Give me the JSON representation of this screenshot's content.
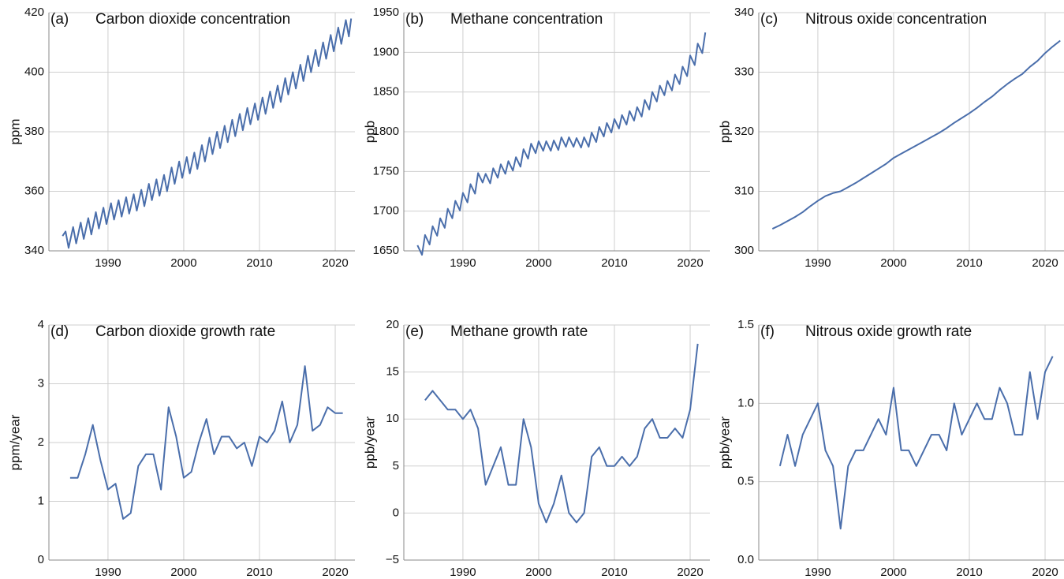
{
  "chart_data": [
    {
      "type": "line",
      "panel_label": "(a)",
      "title": "Carbon dioxide concentration",
      "y_label": "ppm",
      "x": [
        1984.0,
        1984.4,
        1984.8,
        1985.4,
        1985.8,
        1986.4,
        1986.8,
        1987.4,
        1987.8,
        1988.4,
        1988.8,
        1989.4,
        1989.8,
        1990.4,
        1990.8,
        1991.4,
        1991.8,
        1992.4,
        1992.8,
        1993.4,
        1993.8,
        1994.4,
        1994.8,
        1995.4,
        1995.8,
        1996.4,
        1996.8,
        1997.4,
        1997.8,
        1998.4,
        1998.8,
        1999.4,
        1999.8,
        2000.4,
        2000.8,
        2001.4,
        2001.8,
        2002.4,
        2002.8,
        2003.4,
        2003.8,
        2004.4,
        2004.8,
        2005.4,
        2005.8,
        2006.4,
        2006.8,
        2007.4,
        2007.8,
        2008.4,
        2008.8,
        2009.4,
        2009.8,
        2010.4,
        2010.8,
        2011.4,
        2011.8,
        2012.4,
        2012.8,
        2013.4,
        2013.8,
        2014.4,
        2014.8,
        2015.4,
        2015.8,
        2016.4,
        2016.8,
        2017.4,
        2017.8,
        2018.4,
        2018.8,
        2019.4,
        2019.8,
        2020.4,
        2020.8,
        2021.4,
        2021.8,
        2022.1
      ],
      "series": [
        {
          "color": "#4a6eab",
          "values": [
            345,
            346.5,
            341,
            348,
            342.5,
            349.5,
            344,
            351,
            345.5,
            353,
            347.5,
            354.5,
            349,
            356,
            350.5,
            357,
            351.5,
            358,
            352.5,
            359,
            353.5,
            360.5,
            355,
            362.5,
            357,
            364,
            358.5,
            365.5,
            360,
            368,
            362.5,
            370,
            364.5,
            371.5,
            366,
            373,
            367.5,
            375.5,
            370,
            378,
            372.5,
            380,
            374.5,
            382,
            376.5,
            384,
            378.5,
            386,
            380.5,
            388,
            382.5,
            389.5,
            384,
            391.5,
            386,
            393.5,
            388,
            395.5,
            390,
            398,
            392.5,
            400,
            394.5,
            402.5,
            397,
            405.5,
            400,
            407.5,
            402,
            410,
            404.5,
            412.5,
            407,
            415,
            409.5,
            417.5,
            412,
            418
          ]
        }
      ],
      "xlim": [
        1982.2,
        2022.6
      ],
      "xticks": [
        1990,
        2000,
        2010,
        2020
      ],
      "ylim": [
        340,
        420
      ],
      "yticks": [
        340,
        360,
        380,
        400,
        420
      ],
      "grid": true
    },
    {
      "type": "line",
      "panel_label": "(b)",
      "title": "Methane concentration",
      "y_label": "ppb",
      "x": [
        1984.0,
        1984.6,
        1985.0,
        1985.6,
        1986.0,
        1986.6,
        1987.0,
        1987.6,
        1988.0,
        1988.6,
        1989.0,
        1989.6,
        1990.0,
        1990.6,
        1991.0,
        1991.6,
        1992.0,
        1992.6,
        1993.0,
        1993.6,
        1994.0,
        1994.6,
        1995.0,
        1995.6,
        1996.0,
        1996.6,
        1997.0,
        1997.6,
        1998.0,
        1998.6,
        1999.0,
        1999.6,
        2000.0,
        2000.6,
        2001.0,
        2001.6,
        2002.0,
        2002.6,
        2003.0,
        2003.6,
        2004.0,
        2004.6,
        2005.0,
        2005.6,
        2006.0,
        2006.6,
        2007.0,
        2007.6,
        2008.0,
        2008.6,
        2009.0,
        2009.6,
        2010.0,
        2010.6,
        2011.0,
        2011.6,
        2012.0,
        2012.6,
        2013.0,
        2013.6,
        2014.0,
        2014.6,
        2015.0,
        2015.6,
        2016.0,
        2016.6,
        2017.0,
        2017.6,
        2018.0,
        2018.6,
        2019.0,
        2019.6,
        2020.0,
        2020.6,
        2021.0,
        2021.6,
        2022.0
      ],
      "series": [
        {
          "color": "#4a6eab",
          "values": [
            1657,
            1645,
            1670,
            1658,
            1681,
            1669,
            1691,
            1679,
            1703,
            1691,
            1713,
            1701,
            1723,
            1711,
            1734,
            1722,
            1748,
            1736,
            1747,
            1735,
            1754,
            1742,
            1759,
            1747,
            1763,
            1751,
            1768,
            1756,
            1778,
            1766,
            1785,
            1773,
            1788,
            1776,
            1788,
            1776,
            1789,
            1777,
            1793,
            1781,
            1793,
            1781,
            1792,
            1780,
            1793,
            1781,
            1799,
            1787,
            1806,
            1794,
            1811,
            1799,
            1816,
            1804,
            1821,
            1809,
            1826,
            1814,
            1831,
            1819,
            1840,
            1828,
            1850,
            1838,
            1858,
            1846,
            1864,
            1852,
            1872,
            1860,
            1882,
            1870,
            1896,
            1884,
            1911,
            1899,
            1925
          ]
        }
      ],
      "xlim": [
        1982.2,
        2022.6
      ],
      "xticks": [
        1990,
        2000,
        2010,
        2020
      ],
      "ylim": [
        1650,
        1950
      ],
      "yticks": [
        1650,
        1700,
        1750,
        1800,
        1850,
        1900,
        1950
      ],
      "grid": true
    },
    {
      "type": "line",
      "panel_label": "(c)",
      "title": "Nitrous oxide concentration",
      "y_label": "ppb",
      "x": [
        1984,
        1985,
        1986,
        1987,
        1988,
        1989,
        1990,
        1991,
        1992,
        1993,
        1994,
        1995,
        1996,
        1997,
        1998,
        1999,
        2000,
        2001,
        2002,
        2003,
        2004,
        2005,
        2006,
        2007,
        2008,
        2009,
        2010,
        2011,
        2012,
        2013,
        2014,
        2015,
        2016,
        2017,
        2018,
        2019,
        2020,
        2021,
        2022
      ],
      "series": [
        {
          "color": "#4a6eab",
          "values": [
            303.7,
            304.3,
            305.0,
            305.7,
            306.5,
            307.5,
            308.4,
            309.2,
            309.7,
            310.0,
            310.7,
            311.4,
            312.2,
            313.0,
            313.8,
            314.6,
            315.6,
            316.3,
            317.0,
            317.7,
            318.4,
            319.1,
            319.8,
            320.6,
            321.5,
            322.3,
            323.1,
            324.0,
            325.0,
            325.9,
            327.0,
            328.0,
            328.9,
            329.7,
            330.9,
            331.9,
            333.2,
            334.3,
            335.3
          ]
        }
      ],
      "xlim": [
        1982.2,
        2022.6
      ],
      "xticks": [
        1990,
        2000,
        2010,
        2020
      ],
      "ylim": [
        300,
        340
      ],
      "yticks": [
        300,
        310,
        320,
        330,
        340
      ],
      "grid": true
    },
    {
      "type": "line",
      "panel_label": "(d)",
      "title": "Carbon dioxide growth rate",
      "y_label": "ppm/year",
      "x": [
        1985,
        1986,
        1987,
        1988,
        1989,
        1990,
        1991,
        1992,
        1993,
        1994,
        1995,
        1996,
        1997,
        1998,
        1999,
        2000,
        2001,
        2002,
        2003,
        2004,
        2005,
        2006,
        2007,
        2008,
        2009,
        2010,
        2011,
        2012,
        2013,
        2014,
        2015,
        2016,
        2017,
        2018,
        2019,
        2020,
        2021
      ],
      "series": [
        {
          "color": "#4a6eab",
          "values": [
            1.4,
            1.4,
            1.8,
            2.3,
            1.7,
            1.2,
            1.3,
            0.7,
            0.8,
            1.6,
            1.8,
            1.8,
            1.2,
            2.6,
            2.1,
            1.4,
            1.5,
            2.0,
            2.4,
            1.8,
            2.1,
            2.1,
            1.9,
            2.0,
            1.6,
            2.1,
            2.0,
            2.2,
            2.7,
            2.0,
            2.3,
            3.3,
            2.2,
            2.3,
            2.6,
            2.5,
            2.5
          ]
        }
      ],
      "xlim": [
        1982.2,
        2022.6
      ],
      "xticks": [
        1990,
        2000,
        2010,
        2020
      ],
      "ylim": [
        0,
        4
      ],
      "yticks": [
        0,
        1,
        2,
        3,
        4
      ],
      "grid": true
    },
    {
      "type": "line",
      "panel_label": "(e)",
      "title": "Methane growth rate",
      "y_label": "ppb/year",
      "x": [
        1985,
        1986,
        1987,
        1988,
        1989,
        1990,
        1991,
        1992,
        1993,
        1994,
        1995,
        1996,
        1997,
        1998,
        1999,
        2000,
        2001,
        2002,
        2003,
        2004,
        2005,
        2006,
        2007,
        2008,
        2009,
        2010,
        2011,
        2012,
        2013,
        2014,
        2015,
        2016,
        2017,
        2018,
        2019,
        2020,
        2021
      ],
      "series": [
        {
          "color": "#4a6eab",
          "values": [
            12,
            13,
            12,
            11,
            11,
            10,
            11,
            9,
            3,
            5,
            7,
            3,
            3,
            10,
            7,
            1,
            -1,
            1,
            4,
            0,
            -1,
            0,
            6,
            7,
            5,
            5,
            6,
            5,
            6,
            9,
            10,
            8,
            8,
            9,
            8,
            11,
            18
          ]
        }
      ],
      "xlim": [
        1982.2,
        2022.6
      ],
      "xticks": [
        1990,
        2000,
        2010,
        2020
      ],
      "ylim": [
        -5,
        20
      ],
      "yticks": [
        {
          "value": -5,
          "label": "−5"
        },
        0,
        5,
        10,
        15,
        20
      ],
      "grid": true
    },
    {
      "type": "line",
      "panel_label": "(f)",
      "title": "Nitrous oxide growth rate",
      "y_label": "ppb/year",
      "x": [
        1985,
        1986,
        1987,
        1988,
        1989,
        1990,
        1991,
        1992,
        1993,
        1994,
        1995,
        1996,
        1997,
        1998,
        1999,
        2000,
        2001,
        2002,
        2003,
        2004,
        2005,
        2006,
        2007,
        2008,
        2009,
        2010,
        2011,
        2012,
        2013,
        2014,
        2015,
        2016,
        2017,
        2018,
        2019,
        2020,
        2021
      ],
      "series": [
        {
          "color": "#4a6eab",
          "values": [
            0.6,
            0.8,
            0.6,
            0.8,
            0.9,
            1.0,
            0.7,
            0.6,
            0.2,
            0.6,
            0.7,
            0.7,
            0.8,
            0.9,
            0.8,
            1.1,
            0.7,
            0.7,
            0.6,
            0.7,
            0.8,
            0.8,
            0.7,
            1.0,
            0.8,
            0.9,
            1.0,
            0.9,
            0.9,
            1.1,
            1.0,
            0.8,
            0.8,
            1.2,
            0.9,
            1.2,
            1.3
          ]
        }
      ],
      "xlim": [
        1982.2,
        2022.6
      ],
      "xticks": [
        1990,
        2000,
        2010,
        2020
      ],
      "ylim": [
        0,
        1.5
      ],
      "yticks": [
        {
          "value": 0,
          "label": "0.0"
        },
        0.5,
        {
          "value": 1,
          "label": "1.0"
        },
        1.5
      ],
      "grid": true
    }
  ]
}
